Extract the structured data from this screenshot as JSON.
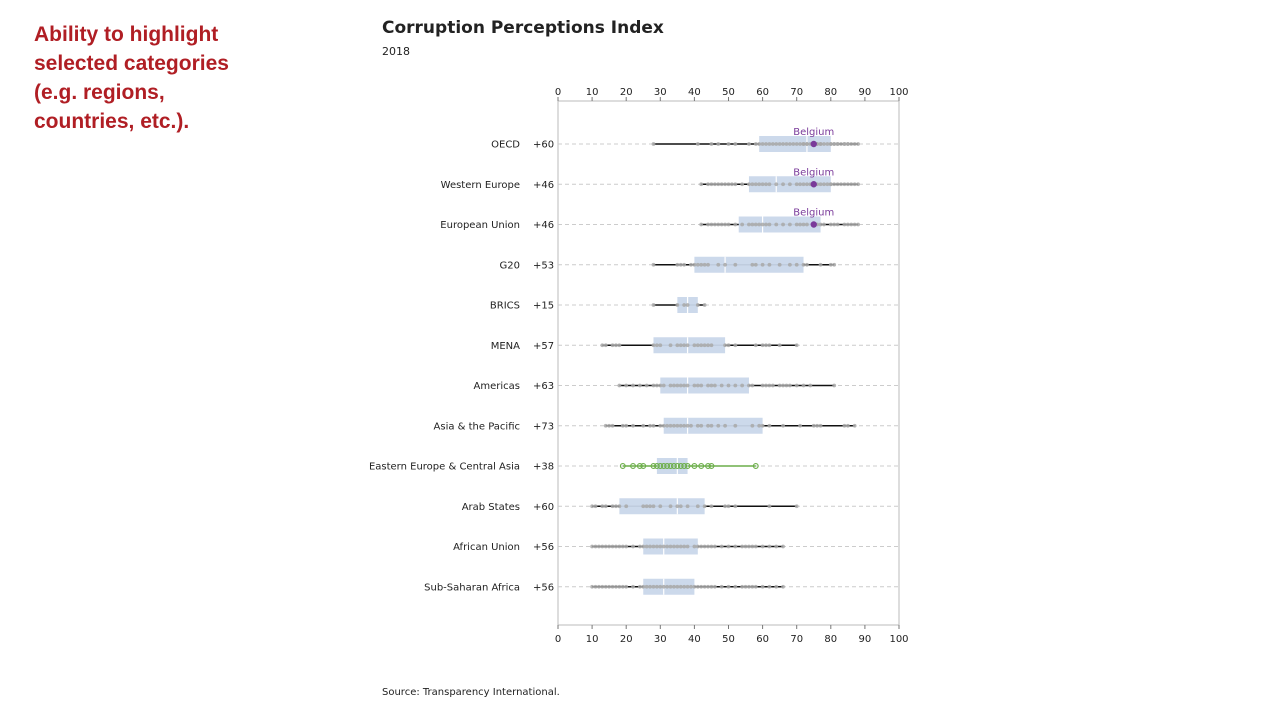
{
  "callout": {
    "text": "Ability to highlight\nselected categories\n(e.g. regions,\ncountries, etc.)."
  },
  "chart_data": {
    "type": "box",
    "title": "Corruption Perceptions Index",
    "subtitle": "2018",
    "source": "Source: Transparency International.",
    "xlim": [
      0,
      100
    ],
    "ticks": [
      0,
      10,
      20,
      30,
      40,
      50,
      60,
      70,
      80,
      90,
      100
    ],
    "grid": "dashed horizontal per row",
    "colors": {
      "box": "#c9d7ea",
      "whisker": "#111111",
      "point": "#a8a8a8",
      "highlight_point": "#7a3a9a",
      "highlight_group": "#6cae4a",
      "grid": "#cccccc",
      "frame": "#bbbbbb"
    },
    "highlight": {
      "label": "Belgium",
      "value": 75,
      "groups": [
        "OECD",
        "Western Europe",
        "European Union"
      ],
      "selected_group": "Eastern Europe & Central Asia"
    },
    "series": [
      {
        "name": "OECD",
        "count": "+60",
        "min": 28,
        "q1": 59,
        "median": 73,
        "q3": 80,
        "max": 88,
        "points": [
          28,
          41,
          45,
          47,
          50,
          52,
          56,
          58,
          59,
          60,
          61,
          62,
          63,
          64,
          65,
          66,
          67,
          68,
          69,
          70,
          71,
          72,
          72,
          73,
          73,
          74,
          75,
          76,
          76,
          77,
          77,
          78,
          79,
          80,
          80,
          81,
          81,
          82,
          82,
          83,
          84,
          84,
          85,
          85,
          86,
          87,
          88
        ]
      },
      {
        "name": "Western Europe",
        "count": "+46",
        "min": 42,
        "q1": 56,
        "median": 64,
        "q3": 80,
        "max": 88,
        "points": [
          42,
          44,
          45,
          46,
          47,
          48,
          49,
          50,
          51,
          52,
          54,
          56,
          57,
          58,
          59,
          60,
          61,
          62,
          64,
          66,
          68,
          70,
          71,
          72,
          73,
          74,
          75,
          76,
          77,
          78,
          79,
          80,
          80,
          81,
          82,
          83,
          84,
          85,
          86,
          87,
          88
        ]
      },
      {
        "name": "European Union",
        "count": "+46",
        "min": 42,
        "q1": 53,
        "median": 60,
        "q3": 77,
        "max": 88,
        "points": [
          42,
          44,
          45,
          46,
          47,
          48,
          49,
          50,
          52,
          54,
          56,
          57,
          58,
          59,
          60,
          61,
          62,
          64,
          66,
          68,
          70,
          71,
          72,
          73,
          75,
          76,
          77,
          78,
          80,
          81,
          82,
          84,
          85,
          86,
          87,
          88
        ]
      },
      {
        "name": "G20",
        "count": "+53",
        "min": 28,
        "q1": 40,
        "median": 49,
        "q3": 72,
        "max": 81,
        "points": [
          28,
          35,
          36,
          37,
          39,
          40,
          41,
          42,
          43,
          44,
          47,
          49,
          52,
          57,
          58,
          60,
          62,
          65,
          68,
          70,
          72,
          73,
          77,
          80,
          81
        ]
      },
      {
        "name": "BRICS",
        "count": "+15",
        "min": 28,
        "q1": 35,
        "median": 38,
        "q3": 41,
        "max": 43,
        "points": [
          28,
          35,
          37,
          38,
          41,
          43
        ]
      },
      {
        "name": "MENA",
        "count": "+57",
        "min": 13,
        "q1": 28,
        "median": 38,
        "q3": 49,
        "max": 70,
        "points": [
          13,
          14,
          16,
          17,
          18,
          28,
          29,
          30,
          33,
          35,
          36,
          37,
          38,
          40,
          41,
          42,
          43,
          44,
          45,
          49,
          50,
          52,
          58,
          60,
          61,
          62,
          65,
          70
        ]
      },
      {
        "name": "Americas",
        "count": "+63",
        "min": 18,
        "q1": 30,
        "median": 38,
        "q3": 56,
        "max": 81,
        "points": [
          18,
          20,
          22,
          24,
          26,
          28,
          29,
          30,
          31,
          33,
          34,
          35,
          36,
          37,
          38,
          40,
          41,
          42,
          44,
          45,
          46,
          48,
          50,
          52,
          54,
          56,
          57,
          60,
          61,
          62,
          63,
          65,
          66,
          67,
          68,
          70,
          72,
          74,
          81
        ]
      },
      {
        "name": "Asia & the Pacific",
        "count": "+73",
        "min": 14,
        "q1": 31,
        "median": 38,
        "q3": 60,
        "max": 87,
        "points": [
          14,
          15,
          16,
          19,
          20,
          22,
          25,
          27,
          28,
          30,
          31,
          32,
          33,
          34,
          35,
          36,
          37,
          38,
          39,
          41,
          42,
          44,
          45,
          47,
          49,
          52,
          57,
          59,
          60,
          62,
          66,
          71,
          75,
          76,
          77,
          84,
          85,
          87
        ]
      },
      {
        "name": "Eastern Europe & Central Asia",
        "count": "+38",
        "min": 19,
        "q1": 29,
        "median": 35,
        "q3": 38,
        "max": 58,
        "points": [
          19,
          22,
          24,
          25,
          28,
          29,
          30,
          31,
          32,
          33,
          34,
          35,
          36,
          37,
          38,
          40,
          42,
          44,
          45,
          58
        ]
      },
      {
        "name": "Arab States",
        "count": "+60",
        "min": 10,
        "q1": 18,
        "median": 35,
        "q3": 43,
        "max": 70,
        "points": [
          10,
          11,
          13,
          14,
          16,
          17,
          18,
          20,
          25,
          26,
          27,
          28,
          30,
          33,
          35,
          36,
          38,
          41,
          43,
          45,
          49,
          50,
          52,
          62,
          70
        ]
      },
      {
        "name": "African Union",
        "count": "+56",
        "min": 10,
        "q1": 25,
        "median": 31,
        "q3": 41,
        "max": 66,
        "points": [
          10,
          11,
          12,
          13,
          14,
          15,
          16,
          17,
          18,
          19,
          20,
          22,
          24,
          25,
          26,
          27,
          28,
          29,
          30,
          31,
          32,
          33,
          34,
          35,
          36,
          37,
          38,
          40,
          41,
          42,
          43,
          44,
          45,
          46,
          48,
          50,
          52,
          54,
          55,
          56,
          57,
          58,
          60,
          62,
          64,
          66
        ]
      },
      {
        "name": "Sub-Saharan Africa",
        "count": "+56",
        "min": 10,
        "q1": 25,
        "median": 31,
        "q3": 40,
        "max": 66,
        "points": [
          10,
          11,
          12,
          13,
          14,
          15,
          16,
          17,
          18,
          19,
          20,
          22,
          24,
          25,
          26,
          27,
          28,
          29,
          30,
          31,
          32,
          33,
          34,
          35,
          36,
          37,
          38,
          39,
          40,
          41,
          42,
          43,
          44,
          45,
          46,
          48,
          50,
          52,
          54,
          55,
          56,
          57,
          58,
          60,
          62,
          64,
          66
        ]
      }
    ]
  }
}
